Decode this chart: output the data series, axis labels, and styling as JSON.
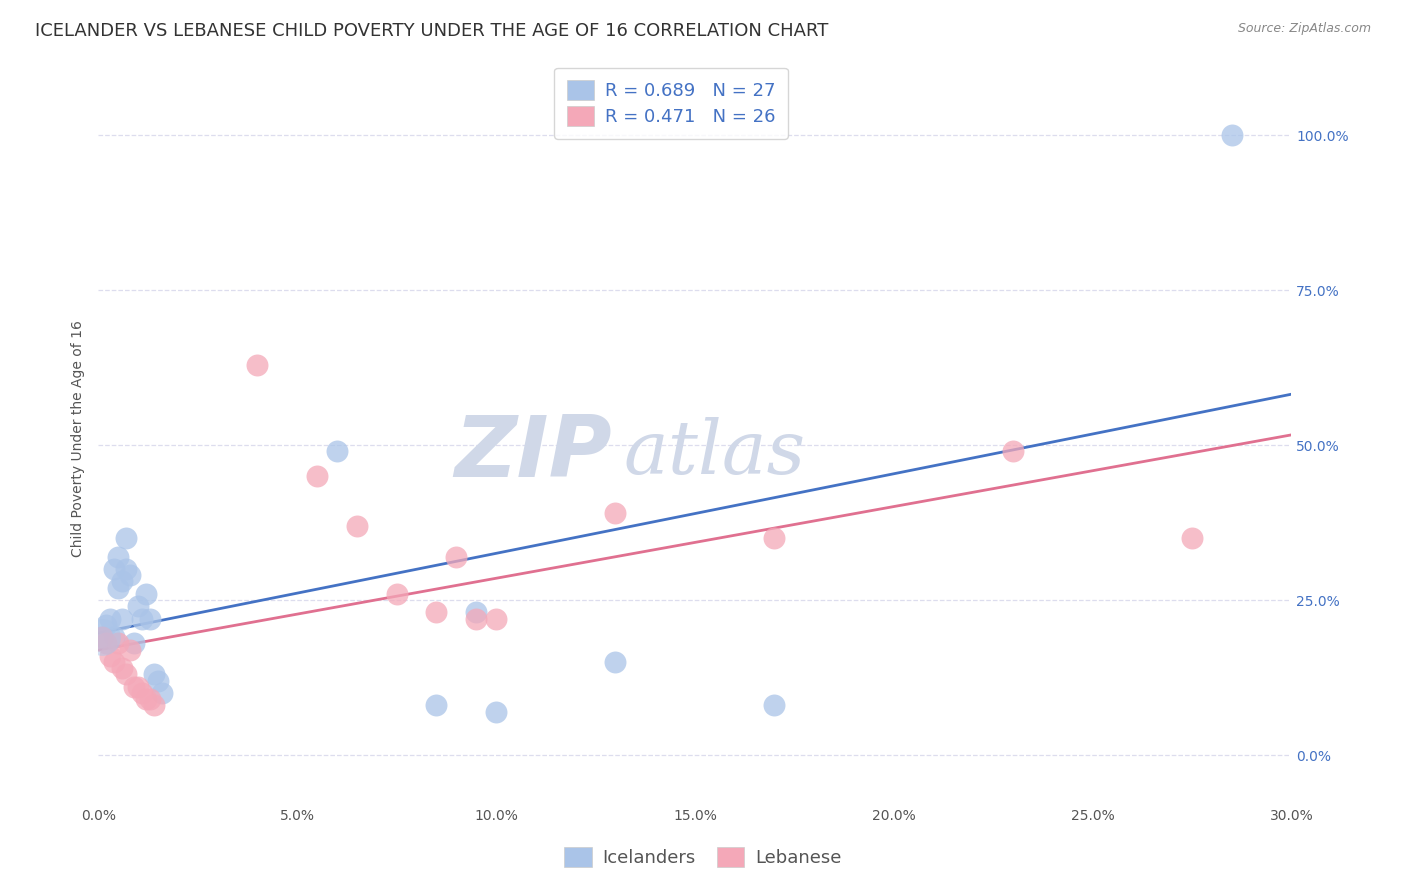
{
  "title": "ICELANDER VS LEBANESE CHILD POVERTY UNDER THE AGE OF 16 CORRELATION CHART",
  "source": "Source: ZipAtlas.com",
  "ylabel": "Child Poverty Under the Age of 16",
  "xlim": [
    0.0,
    0.3
  ],
  "ylim": [
    -0.08,
    1.1
  ],
  "icelander_R": 0.689,
  "icelander_N": 27,
  "lebanese_R": 0.471,
  "lebanese_N": 26,
  "icelander_color": "#aac4e8",
  "lebanese_color": "#f4a8b8",
  "icelander_line_color": "#4472c4",
  "lebanese_line_color": "#e07090",
  "watermark_zip": "ZIP",
  "watermark_atlas": "atlas",
  "watermark_color": "#d0d8e8",
  "icelander_x": [
    0.001,
    0.002,
    0.003,
    0.004,
    0.004,
    0.005,
    0.005,
    0.006,
    0.006,
    0.007,
    0.007,
    0.008,
    0.009,
    0.01,
    0.011,
    0.012,
    0.013,
    0.014,
    0.015,
    0.016,
    0.06,
    0.085,
    0.095,
    0.1,
    0.13,
    0.17,
    0.285
  ],
  "icelander_y": [
    0.19,
    0.21,
    0.22,
    0.19,
    0.3,
    0.32,
    0.27,
    0.28,
    0.22,
    0.35,
    0.3,
    0.29,
    0.18,
    0.24,
    0.22,
    0.26,
    0.22,
    0.13,
    0.12,
    0.1,
    0.49,
    0.08,
    0.23,
    0.07,
    0.15,
    0.08,
    1.0
  ],
  "lebanese_x": [
    0.001,
    0.002,
    0.003,
    0.004,
    0.005,
    0.006,
    0.007,
    0.008,
    0.009,
    0.01,
    0.011,
    0.012,
    0.013,
    0.014,
    0.04,
    0.055,
    0.065,
    0.075,
    0.085,
    0.09,
    0.095,
    0.1,
    0.13,
    0.17,
    0.23,
    0.275
  ],
  "lebanese_y": [
    0.19,
    0.18,
    0.16,
    0.15,
    0.18,
    0.14,
    0.13,
    0.17,
    0.11,
    0.11,
    0.1,
    0.09,
    0.09,
    0.08,
    0.63,
    0.45,
    0.37,
    0.26,
    0.23,
    0.32,
    0.22,
    0.22,
    0.39,
    0.35,
    0.49,
    0.35
  ],
  "legend_entries": [
    "Icelanders",
    "Lebanese"
  ],
  "background_color": "#ffffff",
  "grid_color": "#ddddee",
  "title_fontsize": 13,
  "axis_label_fontsize": 10,
  "tick_fontsize": 10,
  "legend_fontsize": 13
}
